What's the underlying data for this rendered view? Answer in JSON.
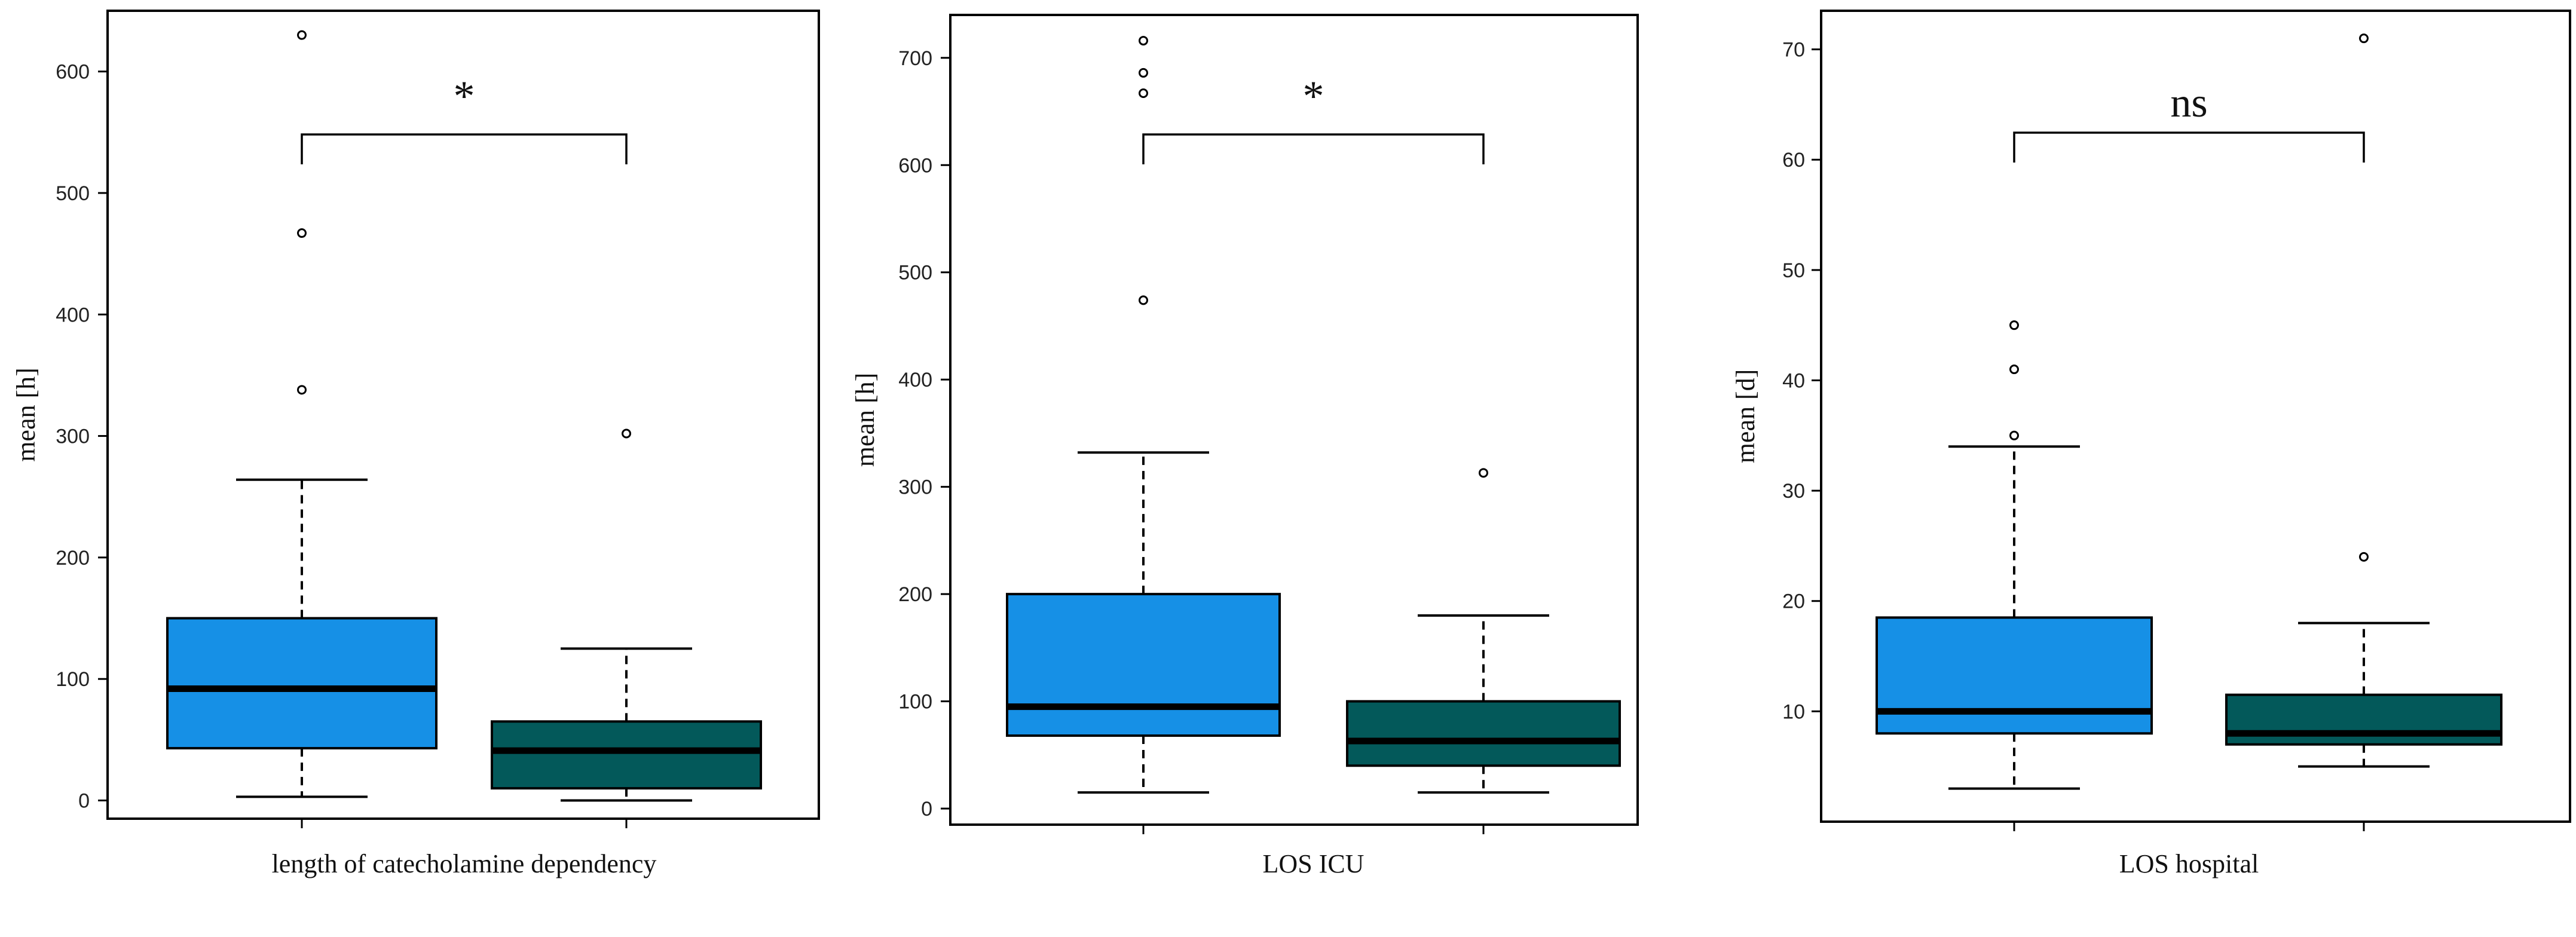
{
  "colors": {
    "box_group1": "#1690E6",
    "box_group2": "#03595A",
    "median": "#000000",
    "frame": "#000000",
    "background": "#ffffff"
  },
  "chart_data": [
    {
      "type": "box",
      "title": "",
      "xlabel": "length of catecholamine dependency",
      "xlabel_lines": [
        "length of catecholamine dependency"
      ],
      "ylabel": "mean [h]",
      "ylim": [
        -15,
        650
      ],
      "yticks": [
        0,
        100,
        200,
        300,
        400,
        500,
        600
      ],
      "grid": false,
      "significance": "*",
      "boxes": [
        {
          "q1": 43,
          "median": 92,
          "q3": 150,
          "whisker_low": 3,
          "whisker_high": 264,
          "outliers": [
            338,
            467,
            630
          ]
        },
        {
          "q1": 10,
          "median": 41,
          "q3": 65,
          "whisker_low": 0,
          "whisker_high": 125,
          "outliers": [
            302
          ]
        }
      ]
    },
    {
      "type": "box",
      "title": "",
      "xlabel": "LOS ICU",
      "xlabel_lines": [
        "LOS ICU"
      ],
      "ylabel": "mean [h]",
      "ylim": [
        -15,
        740
      ],
      "yticks": [
        0,
        100,
        200,
        300,
        400,
        500,
        600,
        700
      ],
      "grid": false,
      "significance": "*",
      "boxes": [
        {
          "q1": 68,
          "median": 95,
          "q3": 200,
          "whisker_low": 15,
          "whisker_high": 332,
          "outliers": [
            474,
            667,
            686,
            716
          ]
        },
        {
          "q1": 40,
          "median": 63,
          "q3": 100,
          "whisker_low": 15,
          "whisker_high": 180,
          "outliers": [
            313
          ]
        }
      ]
    },
    {
      "type": "box",
      "title": "",
      "xlabel": "LOS hospital",
      "xlabel_lines": [
        "LOS hospital"
      ],
      "ylabel": "mean [d]",
      "ylim": [
        0,
        73.5
      ],
      "yticks": [
        10,
        20,
        30,
        40,
        50,
        60,
        70
      ],
      "grid": false,
      "significance": "ns",
      "boxes": [
        {
          "q1": 8,
          "median": 10,
          "q3": 18.5,
          "whisker_low": 3,
          "whisker_high": 34,
          "outliers": [
            35,
            41,
            45
          ]
        },
        {
          "q1": 7,
          "median": 8,
          "q3": 11.5,
          "whisker_low": 5,
          "whisker_high": 18,
          "outliers": [
            24,
            71
          ]
        }
      ]
    }
  ]
}
